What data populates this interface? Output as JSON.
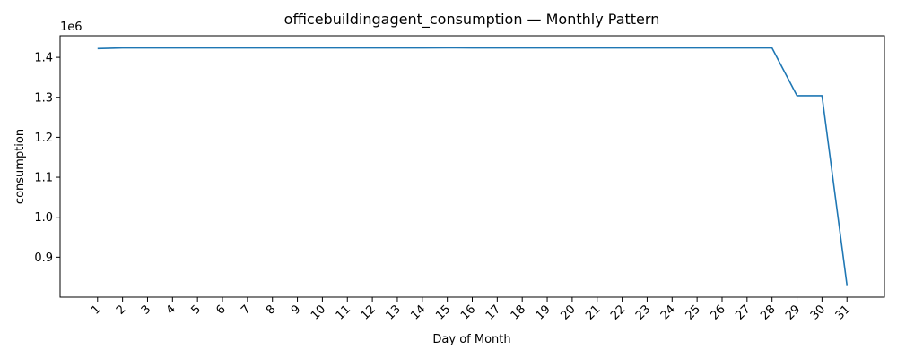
{
  "chart_data": {
    "type": "line",
    "title": "officebuildingagent_consumption — Monthly Pattern",
    "xlabel": "Day of Month",
    "ylabel": "consumption",
    "y_offset_label": "1e6",
    "x": [
      1,
      2,
      3,
      4,
      5,
      6,
      7,
      8,
      9,
      10,
      11,
      12,
      13,
      14,
      15,
      16,
      17,
      18,
      19,
      20,
      21,
      22,
      23,
      24,
      25,
      26,
      27,
      28,
      29,
      30,
      31
    ],
    "x_tick_labels": [
      "1",
      "2",
      "3",
      "4",
      "5",
      "6",
      "7",
      "8",
      "9",
      "10",
      "11",
      "12",
      "13",
      "14",
      "15",
      "16",
      "17",
      "18",
      "19",
      "20",
      "21",
      "22",
      "23",
      "24",
      "25",
      "26",
      "27",
      "28",
      "29",
      "30",
      "31"
    ],
    "series": [
      {
        "values": [
          1422000,
          1423500,
          1423500,
          1423500,
          1423500,
          1423500,
          1423500,
          1423500,
          1423500,
          1423500,
          1423500,
          1423500,
          1423500,
          1423500,
          1424000,
          1423500,
          1423500,
          1423500,
          1423500,
          1423500,
          1423500,
          1423500,
          1423500,
          1423500,
          1423500,
          1423500,
          1423500,
          1423500,
          1304000,
          1304000,
          830000
        ],
        "color": "#1f77b4"
      }
    ],
    "y_ticks": [
      0.9,
      1.0,
      1.1,
      1.2,
      1.3,
      1.4
    ],
    "y_tick_labels": [
      "0.9",
      "1.0",
      "1.1",
      "1.2",
      "1.3",
      "1.4"
    ],
    "ylim": [
      800000,
      1454000
    ],
    "xlim": [
      -0.5,
      32.5
    ],
    "grid": false,
    "legend": "none"
  }
}
